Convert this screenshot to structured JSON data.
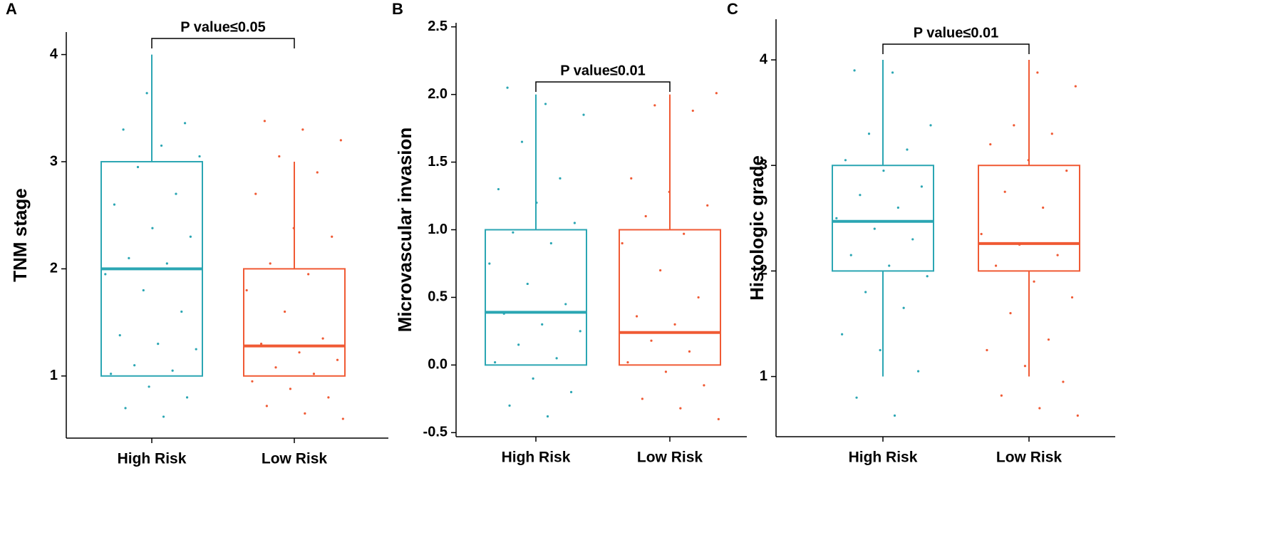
{
  "chart_data": [
    {
      "type": "box",
      "panel_label": "A",
      "ylabel": "TNM stage",
      "annotation": "P value≤0.05",
      "categories": [
        "High Risk",
        "Low Risk"
      ],
      "ylim": [
        0.42,
        4.21
      ],
      "yticks": [
        1,
        2,
        3,
        4
      ],
      "boxes": [
        {
          "color": "#2ba6b3",
          "min": 1,
          "q1": 1,
          "median": 2,
          "q3": 3,
          "max": 4,
          "points": [
            0.62,
            0.7,
            0.8,
            0.9,
            1.02,
            1.05,
            1.1,
            1.25,
            1.3,
            1.38,
            1.6,
            1.8,
            1.95,
            2.05,
            2.1,
            2.3,
            2.38,
            2.6,
            2.7,
            2.95,
            3.05,
            3.15,
            3.3,
            3.36,
            3.64
          ]
        },
        {
          "color": "#f05a34",
          "min": 1,
          "q1": 1,
          "median": 1.28,
          "q3": 2,
          "max": 3,
          "points": [
            0.6,
            0.65,
            0.72,
            0.8,
            0.88,
            0.95,
            1.02,
            1.08,
            1.15,
            1.22,
            1.3,
            1.35,
            1.6,
            1.8,
            1.95,
            2.05,
            2.3,
            2.38,
            2.7,
            2.9,
            3.05,
            3.2,
            3.3,
            3.38
          ]
        }
      ]
    },
    {
      "type": "box",
      "panel_label": "B",
      "ylabel": "Microvascular  invasion",
      "annotation": "P value≤0.01",
      "categories": [
        "High Risk",
        "Low Risk"
      ],
      "ylim": [
        -0.53,
        2.53
      ],
      "yticks": [
        -0.5,
        {
          "value": 0,
          "label": "0.0"
        },
        0.5,
        {
          "value": 1,
          "label": "1.0"
        },
        1.5,
        {
          "value": 2,
          "label": "2.0"
        },
        2.5
      ],
      "boxes": [
        {
          "color": "#2ba6b3",
          "min": 0,
          "q1": 0,
          "median": 0.39,
          "q3": 1,
          "max": 2,
          "points": [
            -0.38,
            -0.3,
            -0.2,
            -0.1,
            0.02,
            0.05,
            0.15,
            0.25,
            0.3,
            0.38,
            0.45,
            0.6,
            0.75,
            0.9,
            0.98,
            1.05,
            1.2,
            1.3,
            1.38,
            1.65,
            1.85,
            1.93,
            2.05
          ]
        },
        {
          "color": "#f05a34",
          "min": 0,
          "q1": 0,
          "median": 0.24,
          "q3": 1,
          "max": 2,
          "points": [
            -0.4,
            -0.32,
            -0.25,
            -0.15,
            -0.05,
            0.02,
            0.1,
            0.18,
            0.24,
            0.3,
            0.36,
            0.5,
            0.7,
            0.9,
            0.97,
            1.1,
            1.18,
            1.28,
            1.38,
            1.88,
            1.92,
            2.01
          ]
        }
      ]
    },
    {
      "type": "box",
      "panel_label": "C",
      "ylabel": "Histologic grade",
      "annotation": "P value≤0.01",
      "categories": [
        "High Risk",
        "Low Risk"
      ],
      "ylim": [
        0.43,
        4.385
      ],
      "yticks": [
        1,
        2,
        3,
        4
      ],
      "boxes": [
        {
          "color": "#2ba6b3",
          "min": 1,
          "q1": 2,
          "median": 2.47,
          "q3": 3,
          "max": 4,
          "points": [
            0.63,
            0.8,
            1.05,
            1.25,
            1.4,
            1.65,
            1.8,
            1.95,
            2.05,
            2.15,
            2.3,
            2.4,
            2.5,
            2.6,
            2.72,
            2.8,
            2.95,
            3.05,
            3.15,
            3.3,
            3.38,
            3.88,
            3.9
          ]
        },
        {
          "color": "#f05a34",
          "min": 1,
          "q1": 2,
          "median": 2.26,
          "q3": 3,
          "max": 4,
          "points": [
            0.63,
            0.7,
            0.82,
            0.95,
            1.1,
            1.25,
            1.35,
            1.6,
            1.75,
            1.9,
            2.05,
            2.15,
            2.25,
            2.35,
            2.6,
            2.75,
            2.95,
            3.05,
            3.2,
            3.3,
            3.38,
            3.75,
            3.88
          ]
        }
      ]
    }
  ]
}
